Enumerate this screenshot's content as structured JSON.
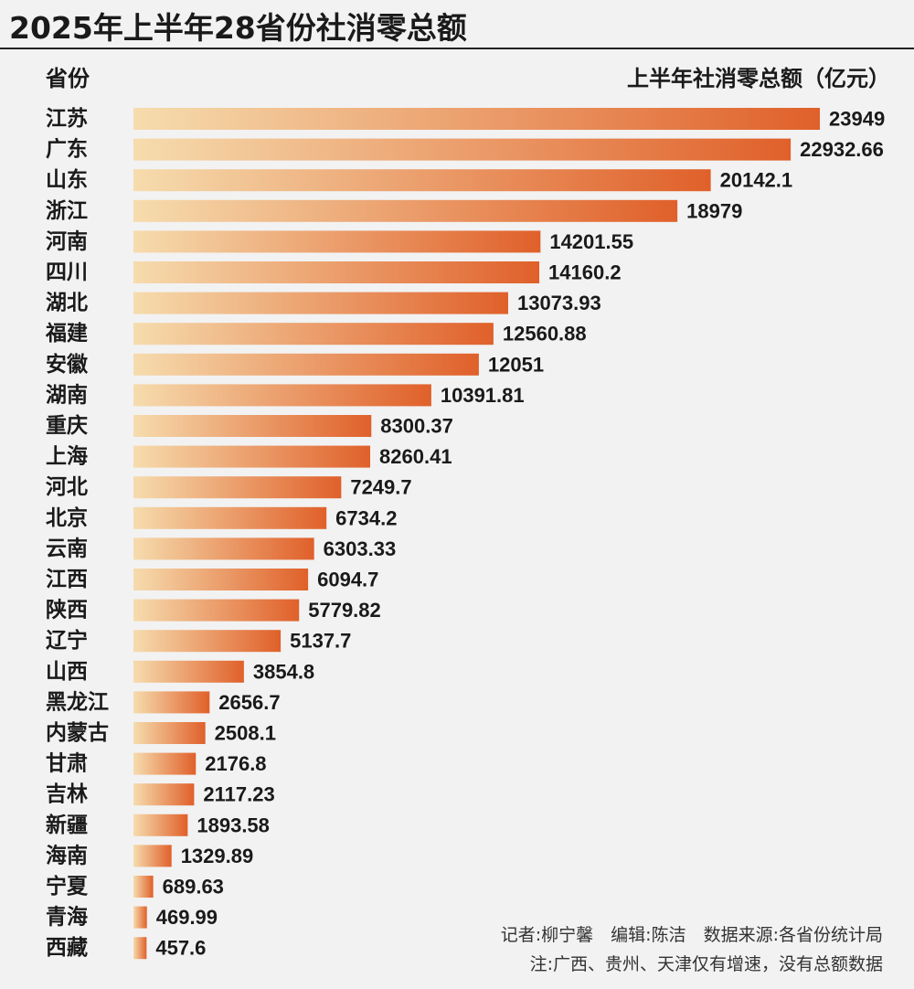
{
  "title": "2025年上半年28省份社消零总额",
  "header": {
    "left_label": "省份",
    "right_label": "上半年社消零总额（亿元）"
  },
  "footer": {
    "credits": "记者:柳宁馨　编辑:陈洁　数据来源:各省份统计局",
    "note": "注:广西、贵州、天津仅有增速，没有总额数据"
  },
  "colors": {
    "bar_start": "#f6dcae",
    "bar_end": "#e0602a",
    "background": "#f2f2f2"
  },
  "chart_data": {
    "type": "bar",
    "orientation": "horizontal",
    "title": "2025年上半年28省份社消零总额",
    "ylabel": "省份",
    "xlabel": "上半年社消零总额（亿元）",
    "xlim": [
      0,
      23949
    ],
    "grid": false,
    "categories": [
      "江苏",
      "广东",
      "山东",
      "浙江",
      "河南",
      "四川",
      "湖北",
      "福建",
      "安徽",
      "湖南",
      "重庆",
      "上海",
      "河北",
      "北京",
      "云南",
      "江西",
      "陕西",
      "辽宁",
      "山西",
      "黑龙江",
      "内蒙古",
      "甘肃",
      "吉林",
      "新疆",
      "海南",
      "宁夏",
      "青海",
      "西藏"
    ],
    "labels": [
      "23949",
      "22932.66",
      "20142.1",
      "18979",
      "14201.55",
      "14160.2",
      "13073.93",
      "12560.88",
      "12051",
      "10391.81",
      "8300.37",
      "8260.41",
      "7249.7",
      "6734.2",
      "6303.33",
      "6094.7",
      "5779.82",
      "5137.7",
      "3854.8",
      "2656.7",
      "2508.1",
      "2176.8",
      "2117.23",
      "1893.58",
      "1329.89",
      "689.63",
      "469.99",
      "457.6"
    ],
    "values": [
      23949,
      22932.66,
      20142.1,
      18979,
      14201.55,
      14160.2,
      13073.93,
      12560.88,
      12051,
      10391.81,
      8300.37,
      8260.41,
      7249.7,
      6734.2,
      6303.33,
      6094.7,
      5779.82,
      5137.7,
      3854.8,
      2656.7,
      2508.1,
      2176.8,
      2117.23,
      1893.58,
      1329.89,
      689.63,
      469.99,
      457.6
    ]
  }
}
